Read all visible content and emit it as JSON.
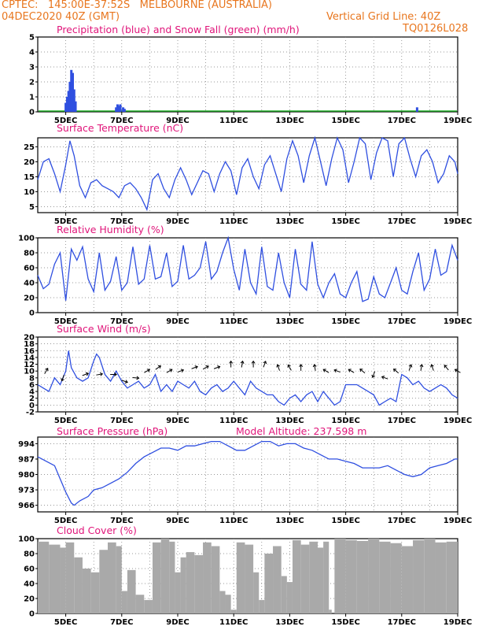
{
  "header": {
    "line1_left": "CPTEC:   145:00E-37:52S   MELBOURNE (AUSTRALIA)",
    "line2_left": "04DEC2020 40Z (GMT)",
    "line2_right": "Vertical Grid Line: 40Z",
    "line3_right": "TQ0126L028"
  },
  "colors": {
    "line": "#2f4fe0",
    "snow": "#22b32a",
    "cloud": "#a9a9a9",
    "title": "#e0157a",
    "header": "#e8761e"
  },
  "x_axis": {
    "day_start": 4.0,
    "day_end": 19.0,
    "labels": [
      "5DEC",
      "7DEC",
      "9DEC",
      "11DEC",
      "13DEC",
      "15DEC",
      "17DEC",
      "19DEC"
    ],
    "label_days": [
      5,
      7,
      9,
      11,
      13,
      15,
      17,
      19
    ]
  },
  "chart_data": [
    {
      "id": "precip",
      "type": "bar",
      "title": "Precipitation (blue) and Snow Fall (green) (mm/h)",
      "ylim": [
        0,
        5
      ],
      "yticks": [
        0,
        1,
        2,
        3,
        4,
        5
      ],
      "series": [
        {
          "name": "Precipitation",
          "color": "#2f4fe0",
          "points": [
            [
              5.0,
              0.6
            ],
            [
              5.05,
              1.0
            ],
            [
              5.1,
              1.4
            ],
            [
              5.15,
              2.0
            ],
            [
              5.2,
              2.8
            ],
            [
              5.25,
              2.6
            ],
            [
              5.3,
              1.5
            ],
            [
              5.35,
              0.7
            ],
            [
              6.8,
              0.3
            ],
            [
              6.85,
              0.5
            ],
            [
              6.9,
              0.4
            ],
            [
              6.95,
              0.5
            ],
            [
              7.05,
              0.3
            ],
            [
              7.1,
              0.2
            ],
            [
              17.55,
              0.3
            ]
          ]
        },
        {
          "name": "Snow Fall",
          "color": "#22b32a",
          "points": []
        }
      ]
    },
    {
      "id": "temp",
      "type": "line",
      "title": "Surface Temperature (nC)",
      "ylim": [
        3,
        28
      ],
      "yticks": [
        5,
        10,
        15,
        20,
        25
      ],
      "x": [
        4.0,
        4.2,
        4.4,
        4.6,
        4.8,
        5.0,
        5.15,
        5.3,
        5.5,
        5.7,
        5.9,
        6.1,
        6.3,
        6.5,
        6.7,
        6.9,
        7.1,
        7.3,
        7.5,
        7.7,
        7.9,
        8.1,
        8.3,
        8.5,
        8.7,
        8.9,
        9.1,
        9.3,
        9.5,
        9.7,
        9.9,
        10.1,
        10.3,
        10.5,
        10.7,
        10.9,
        11.1,
        11.3,
        11.5,
        11.7,
        11.9,
        12.1,
        12.3,
        12.5,
        12.7,
        12.9,
        13.1,
        13.3,
        13.5,
        13.7,
        13.9,
        14.1,
        14.3,
        14.5,
        14.7,
        14.9,
        15.1,
        15.3,
        15.5,
        15.7,
        15.9,
        16.1,
        16.3,
        16.5,
        16.7,
        16.9,
        17.1,
        17.3,
        17.5,
        17.7,
        17.9,
        18.1,
        18.3,
        18.5,
        18.7,
        18.9,
        19.0
      ],
      "values": [
        14,
        20,
        21,
        16,
        10,
        19,
        27,
        22,
        12,
        8,
        13,
        14,
        12,
        11,
        10,
        8,
        12,
        13,
        11,
        8,
        4,
        14,
        16,
        11,
        8,
        14,
        18,
        14,
        9,
        13,
        17,
        16,
        10,
        16,
        20,
        17,
        9,
        18,
        21,
        15,
        11,
        19,
        22,
        16,
        10,
        21,
        27,
        22,
        13,
        22,
        28,
        20,
        12,
        21,
        28,
        24,
        13,
        20,
        28,
        26,
        14,
        23,
        28,
        27,
        15,
        26,
        28,
        21,
        15,
        22,
        24,
        20,
        13,
        16,
        22,
        20,
        16
      ]
    },
    {
      "id": "rh",
      "type": "line",
      "title": "Relative Humidity (%)",
      "ylim": [
        0,
        100
      ],
      "yticks": [
        0,
        20,
        40,
        60,
        80,
        100
      ],
      "x": [
        4.0,
        4.2,
        4.4,
        4.6,
        4.8,
        5.0,
        5.2,
        5.4,
        5.6,
        5.8,
        6.0,
        6.2,
        6.4,
        6.6,
        6.8,
        7.0,
        7.2,
        7.4,
        7.6,
        7.8,
        8.0,
        8.2,
        8.4,
        8.6,
        8.8,
        9.0,
        9.2,
        9.4,
        9.6,
        9.8,
        10.0,
        10.2,
        10.4,
        10.6,
        10.8,
        11.0,
        11.2,
        11.4,
        11.6,
        11.8,
        12.0,
        12.2,
        12.4,
        12.6,
        12.8,
        13.0,
        13.2,
        13.4,
        13.6,
        13.8,
        14.0,
        14.2,
        14.4,
        14.6,
        14.8,
        15.0,
        15.2,
        15.4,
        15.6,
        15.8,
        16.0,
        16.2,
        16.4,
        16.6,
        16.8,
        17.0,
        17.2,
        17.4,
        17.6,
        17.8,
        18.0,
        18.2,
        18.4,
        18.6,
        18.8,
        19.0
      ],
      "values": [
        50,
        32,
        38,
        65,
        80,
        16,
        85,
        70,
        88,
        45,
        28,
        80,
        30,
        42,
        75,
        30,
        40,
        88,
        38,
        45,
        90,
        45,
        48,
        80,
        35,
        42,
        90,
        45,
        50,
        60,
        95,
        45,
        55,
        80,
        100,
        58,
        30,
        85,
        40,
        25,
        88,
        35,
        30,
        80,
        40,
        20,
        85,
        38,
        30,
        95,
        38,
        20,
        40,
        52,
        25,
        20,
        40,
        55,
        15,
        18,
        48,
        25,
        20,
        40,
        60,
        30,
        25,
        55,
        80,
        30,
        45,
        85,
        50,
        55,
        90,
        70
      ]
    },
    {
      "id": "wind",
      "type": "line",
      "title": "Surface Wind (m/s)",
      "ylim": [
        -2,
        20
      ],
      "yticks": [
        -2,
        0,
        2,
        4,
        6,
        8,
        10,
        12,
        14,
        16,
        18,
        20
      ],
      "x": [
        4.0,
        4.2,
        4.4,
        4.6,
        4.8,
        5.0,
        5.1,
        5.2,
        5.4,
        5.6,
        5.8,
        6.0,
        6.1,
        6.2,
        6.4,
        6.6,
        6.8,
        7.0,
        7.2,
        7.4,
        7.6,
        7.8,
        8.0,
        8.2,
        8.4,
        8.6,
        8.8,
        9.0,
        9.2,
        9.4,
        9.6,
        9.8,
        10.0,
        10.2,
        10.4,
        10.6,
        10.8,
        11.0,
        11.2,
        11.4,
        11.6,
        11.8,
        12.0,
        12.2,
        12.4,
        12.6,
        12.8,
        13.0,
        13.2,
        13.4,
        13.6,
        13.8,
        14.0,
        14.2,
        14.4,
        14.6,
        14.8,
        15.0,
        15.2,
        15.4,
        15.6,
        15.8,
        16.0,
        16.2,
        16.4,
        16.6,
        16.8,
        17.0,
        17.2,
        17.4,
        17.6,
        17.8,
        18.0,
        18.2,
        18.4,
        18.6,
        18.8,
        19.0
      ],
      "values": [
        6,
        5,
        4,
        8,
        6,
        10,
        16,
        11,
        8,
        7,
        8,
        13,
        15,
        14,
        9,
        7,
        10,
        7,
        5,
        6,
        7,
        5,
        6,
        9,
        4,
        6,
        4,
        7,
        6,
        5,
        7,
        4,
        3,
        5,
        6,
        4,
        5,
        7,
        5,
        3,
        7,
        5,
        4,
        3,
        3,
        1,
        0,
        2,
        3,
        1,
        3,
        4,
        1,
        4,
        2,
        0,
        1,
        6,
        6,
        6,
        5,
        4,
        3,
        0,
        1,
        2,
        1,
        9,
        8,
        6,
        7,
        5,
        4,
        5,
        6,
        5,
        3,
        2
      ],
      "arrow_days": [
        4.3,
        4.9,
        5.7,
        6.2,
        6.7,
        7.1,
        7.5,
        7.9,
        8.3,
        8.7,
        9.1,
        9.6,
        10.0,
        10.4,
        10.9,
        11.3,
        11.7,
        12.1,
        12.6,
        13.0,
        13.4,
        13.9,
        14.3,
        14.7,
        15.2,
        15.6,
        16.0,
        16.4,
        16.8,
        17.3,
        17.7,
        18.1,
        18.6,
        19.0
      ],
      "arrow_y": [
        10,
        8,
        9,
        9,
        9,
        7,
        8,
        10,
        11,
        10,
        10,
        11,
        11,
        11,
        12,
        12,
        12,
        12,
        11,
        11,
        11,
        11,
        10,
        10,
        10,
        10,
        9,
        8,
        10,
        11,
        11,
        11,
        11,
        10
      ],
      "arrow_dir": [
        30,
        200,
        70,
        80,
        90,
        110,
        95,
        60,
        55,
        60,
        70,
        70,
        60,
        70,
        0,
        10,
        0,
        20,
        340,
        330,
        0,
        350,
        300,
        290,
        300,
        310,
        200,
        290,
        310,
        20,
        10,
        340,
        320,
        300
      ]
    },
    {
      "id": "pressure",
      "type": "line",
      "title": "Surface Pressure (hPa)",
      "annotation": "Model Altitude: 237.598 m",
      "ylim": [
        963,
        997
      ],
      "yticks": [
        966,
        973,
        980,
        987,
        994
      ],
      "x": [
        4.0,
        4.3,
        4.6,
        4.8,
        5.0,
        5.2,
        5.3,
        5.5,
        5.8,
        6.0,
        6.3,
        6.6,
        6.9,
        7.2,
        7.5,
        7.8,
        8.1,
        8.4,
        8.7,
        9.0,
        9.3,
        9.6,
        9.9,
        10.2,
        10.5,
        10.8,
        11.1,
        11.4,
        11.7,
        12.0,
        12.3,
        12.6,
        12.9,
        13.2,
        13.5,
        13.8,
        14.1,
        14.4,
        14.7,
        15.0,
        15.3,
        15.6,
        15.9,
        16.2,
        16.5,
        16.8,
        17.1,
        17.4,
        17.7,
        18.0,
        18.3,
        18.6,
        18.9,
        19.0
      ],
      "values": [
        988,
        986,
        984,
        978,
        972,
        967,
        966,
        968,
        970,
        973,
        974,
        976,
        978,
        981,
        985,
        988,
        990,
        992,
        992,
        991,
        993,
        993,
        994,
        995,
        995,
        993,
        991,
        991,
        993,
        995,
        995,
        993,
        994,
        994,
        992,
        991,
        989,
        987,
        987,
        986,
        985,
        983,
        983,
        983,
        984,
        982,
        980,
        979,
        980,
        983,
        984,
        985,
        987,
        987
      ]
    },
    {
      "id": "cloud",
      "type": "bar",
      "title": "Cloud Cover (%)",
      "ylim": [
        0,
        100
      ],
      "yticks": [
        0,
        20,
        40,
        60,
        80,
        100
      ],
      "segments": [
        [
          4.0,
          96
        ],
        [
          4.4,
          92
        ],
        [
          4.8,
          88
        ],
        [
          5.0,
          95
        ],
        [
          5.3,
          75
        ],
        [
          5.6,
          60
        ],
        [
          5.9,
          55
        ],
        [
          6.2,
          85
        ],
        [
          6.5,
          95
        ],
        [
          6.8,
          90
        ],
        [
          7.0,
          30
        ],
        [
          7.2,
          58
        ],
        [
          7.5,
          25
        ],
        [
          7.8,
          18
        ],
        [
          8.1,
          95
        ],
        [
          8.4,
          100
        ],
        [
          8.7,
          96
        ],
        [
          8.9,
          55
        ],
        [
          9.1,
          75
        ],
        [
          9.3,
          82
        ],
        [
          9.6,
          78
        ],
        [
          9.9,
          95
        ],
        [
          10.2,
          90
        ],
        [
          10.5,
          30
        ],
        [
          10.7,
          25
        ],
        [
          10.9,
          5
        ],
        [
          11.1,
          95
        ],
        [
          11.4,
          92
        ],
        [
          11.7,
          55
        ],
        [
          11.9,
          18
        ],
        [
          12.1,
          80
        ],
        [
          12.4,
          90
        ],
        [
          12.7,
          50
        ],
        [
          12.9,
          42
        ],
        [
          13.1,
          98
        ],
        [
          13.4,
          92
        ],
        [
          13.7,
          96
        ],
        [
          14.0,
          88
        ],
        [
          14.2,
          96
        ],
        [
          14.4,
          5
        ],
        [
          14.5,
          0
        ],
        [
          14.6,
          100
        ],
        [
          15.0,
          98
        ],
        [
          15.4,
          97
        ],
        [
          15.8,
          100
        ],
        [
          16.2,
          96
        ],
        [
          16.6,
          94
        ],
        [
          17.0,
          90
        ],
        [
          17.4,
          98
        ],
        [
          17.8,
          100
        ],
        [
          18.2,
          95
        ],
        [
          18.6,
          96
        ],
        [
          19.0,
          98
        ]
      ]
    }
  ]
}
